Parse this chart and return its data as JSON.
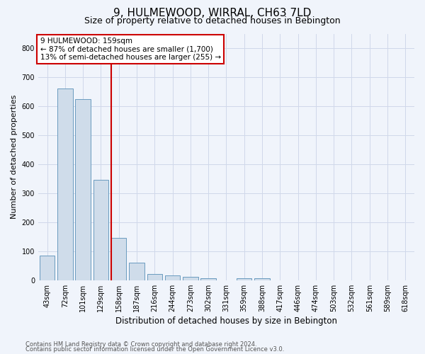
{
  "title1": "9, HULMEWOOD, WIRRAL, CH63 7LD",
  "title2": "Size of property relative to detached houses in Bebington",
  "xlabel": "Distribution of detached houses by size in Bebington",
  "ylabel": "Number of detached properties",
  "categories": [
    "43sqm",
    "72sqm",
    "101sqm",
    "129sqm",
    "158sqm",
    "187sqm",
    "216sqm",
    "244sqm",
    "273sqm",
    "302sqm",
    "331sqm",
    "359sqm",
    "388sqm",
    "417sqm",
    "446sqm",
    "474sqm",
    "503sqm",
    "532sqm",
    "561sqm",
    "589sqm",
    "618sqm"
  ],
  "values": [
    85,
    660,
    625,
    345,
    145,
    60,
    22,
    17,
    12,
    8,
    0,
    8,
    8,
    0,
    0,
    0,
    0,
    0,
    0,
    0,
    0
  ],
  "bar_color": "#cfdcea",
  "bar_edge_color": "#6a9bbf",
  "red_line_index": 4,
  "annotation_line1": "9 HULMEWOOD: 159sqm",
  "annotation_line2": "← 87% of detached houses are smaller (1,700)",
  "annotation_line3": "13% of semi-detached houses are larger (255) →",
  "annotation_box_color": "#ffffff",
  "annotation_border_color": "#cc0000",
  "ylim": [
    0,
    850
  ],
  "yticks": [
    0,
    100,
    200,
    300,
    400,
    500,
    600,
    700,
    800
  ],
  "grid_color": "#d0d8ea",
  "footer1": "Contains HM Land Registry data © Crown copyright and database right 2024.",
  "footer2": "Contains public sector information licensed under the Open Government Licence v3.0.",
  "bg_color": "#f0f4fb",
  "title1_fontsize": 11,
  "title2_fontsize": 9,
  "ylabel_fontsize": 8,
  "xlabel_fontsize": 8.5,
  "tick_fontsize": 7,
  "ann_fontsize": 7.5,
  "footer_fontsize": 6
}
